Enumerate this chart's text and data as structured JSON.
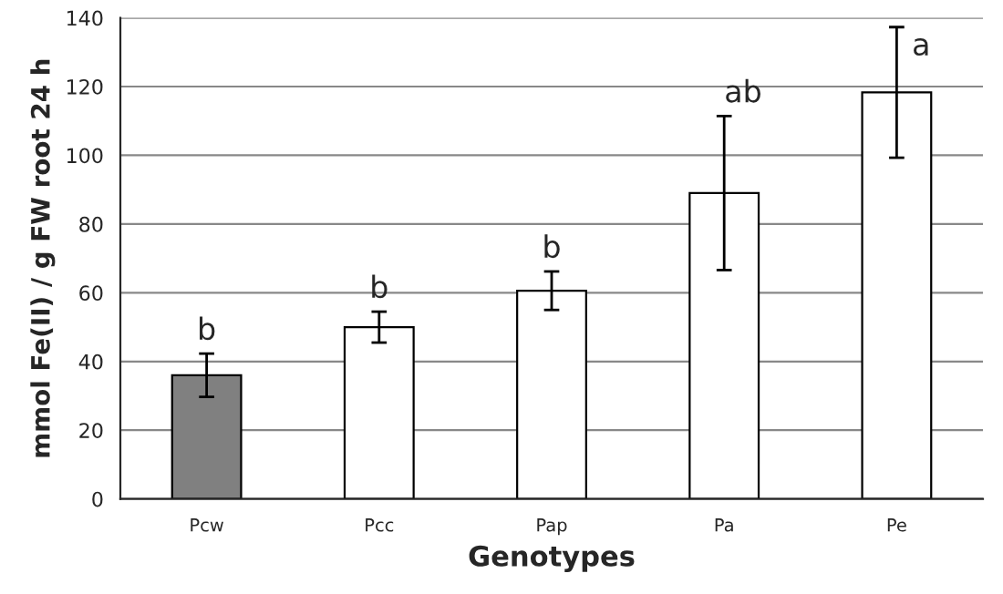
{
  "chart_data": {
    "type": "bar",
    "xlabel": "Genotypes",
    "ylabel": "mmol Fe(II) / g FW root 24 h",
    "categories": [
      "Pcw",
      "Pcc",
      "Pap",
      "Pa",
      "Pe"
    ],
    "values": [
      36,
      50,
      60.6,
      89,
      118.3
    ],
    "errors": [
      6.3,
      4.5,
      5.6,
      22.4,
      19
    ],
    "colors": [
      "#808080",
      "#ffffff",
      "#ffffff",
      "#ffffff",
      "#ffffff"
    ],
    "ylim": [
      0,
      140
    ],
    "yticks": [
      0,
      20,
      40,
      60,
      80,
      100,
      120,
      140
    ],
    "grid": "y",
    "annotations": [
      {
        "text": "b",
        "x": "Pcw",
        "y": 42.3
      },
      {
        "text": "b",
        "x": "Pcc",
        "y": 54.5
      },
      {
        "text": "b",
        "x": "Pap",
        "y": 66.2
      },
      {
        "text": "ab",
        "x": "Pa",
        "y": 111.4
      },
      {
        "text": "a",
        "x": "Pe",
        "y": 137.3
      }
    ]
  }
}
